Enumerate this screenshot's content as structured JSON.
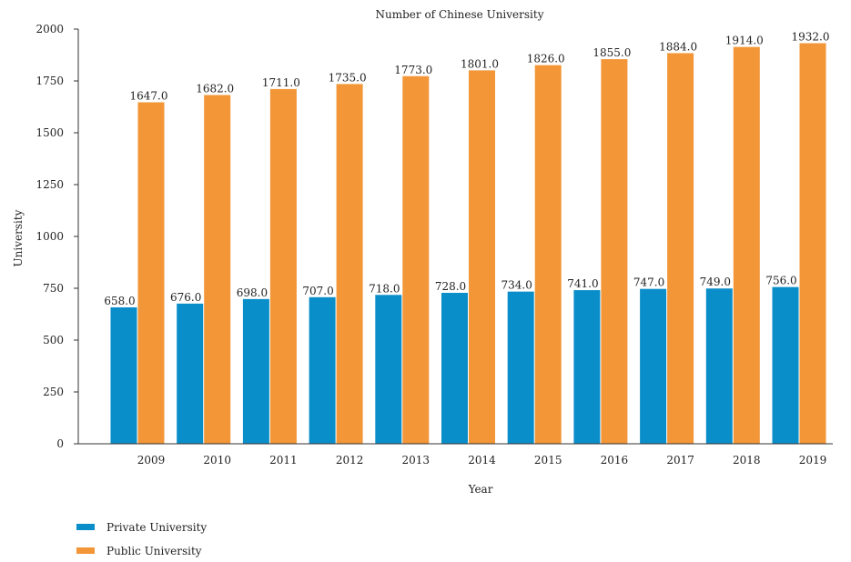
{
  "chart_data": {
    "type": "bar",
    "title": "Number of Chinese University",
    "xlabel": "Year",
    "ylabel": "University",
    "categories": [
      "2009",
      "2010",
      "2011",
      "2012",
      "2013",
      "2014",
      "2015",
      "2016",
      "2017",
      "2018",
      "2019"
    ],
    "series": [
      {
        "name": "Private University",
        "color": "#0a8ec9",
        "values": [
          658.0,
          676.0,
          698.0,
          707.0,
          718.0,
          728.0,
          734.0,
          741.0,
          747.0,
          749.0,
          756.0
        ],
        "labels": [
          "658.0",
          "676.0",
          "698.0",
          "707.0",
          "718.0",
          "728.0",
          "734.0",
          "741.0",
          "747.0",
          "749.0",
          "756.0"
        ]
      },
      {
        "name": "Public University",
        "color": "#f29637",
        "values": [
          1647.0,
          1682.0,
          1711.0,
          1735.0,
          1773.0,
          1801.0,
          1826.0,
          1855.0,
          1884.0,
          1914.0,
          1932.0
        ],
        "labels": [
          "1647.0",
          "1682.0",
          "1711.0",
          "1735.0",
          "1773.0",
          "1801.0",
          "1826.0",
          "1855.0",
          "1884.0",
          "1914.0",
          "1932.0"
        ]
      }
    ],
    "ylim": [
      0,
      2000
    ],
    "yticks": [
      0,
      250,
      500,
      750,
      1000,
      1250,
      1500,
      1750,
      2000
    ],
    "ytick_labels": [
      "0",
      "250",
      "500",
      "750",
      "1000",
      "1250",
      "1500",
      "1750",
      "2000"
    ],
    "grid": false,
    "legend_position": "bottom-left"
  }
}
